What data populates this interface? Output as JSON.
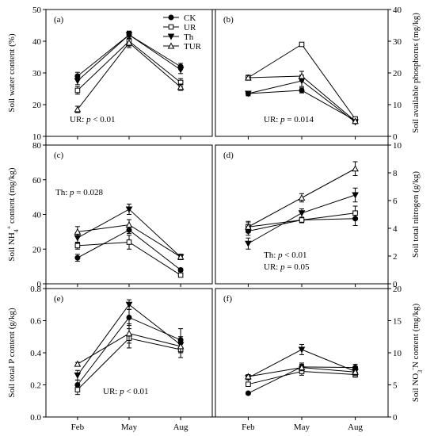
{
  "chart_data": [
    {
      "id": "a",
      "type": "line",
      "panel_label": "(a)",
      "ylabel": "Soil water content (%)",
      "y_side": "left",
      "ylim": [
        10,
        50
      ],
      "yticks": [
        "10",
        "20",
        "30",
        "40",
        "50"
      ],
      "categories": [
        "Feb",
        "May",
        "Aug"
      ],
      "series": [
        {
          "name": "CK",
          "values": [
            29.0,
            42.0,
            32.0
          ],
          "err": [
            1.2,
            1.0,
            1.0
          ]
        },
        {
          "name": "UR",
          "values": [
            24.5,
            40.0,
            27.0
          ],
          "err": [
            1.2,
            1.5,
            1.2
          ]
        },
        {
          "name": "Th",
          "values": [
            27.5,
            42.0,
            31.0
          ],
          "err": [
            1.2,
            1.2,
            1.2
          ]
        },
        {
          "name": "TUR",
          "values": [
            18.5,
            39.5,
            25.5
          ],
          "err": [
            1.0,
            1.5,
            1.0
          ]
        }
      ],
      "annotations": [
        {
          "text": "UR: p < 0.01"
        }
      ],
      "legend": {
        "position": "top-right",
        "entries": [
          "CK",
          "UR",
          "Th",
          "TUR"
        ]
      }
    },
    {
      "id": "b",
      "type": "line",
      "panel_label": "(b)",
      "ylabel": "Soil available phosphorus (mg/kg)",
      "y_side": "right",
      "ylim": [
        0,
        40
      ],
      "yticks": [
        "0",
        "10",
        "20",
        "30",
        "40"
      ],
      "categories": [
        "Feb",
        "May",
        "Aug"
      ],
      "series": [
        {
          "name": "CK",
          "values": [
            13.5,
            14.5,
            5.0
          ],
          "err": [
            0.7,
            0.8,
            0.5
          ]
        },
        {
          "name": "UR",
          "values": [
            18.5,
            29.0,
            5.5
          ],
          "err": [
            0.6,
            0.4,
            0.5
          ]
        },
        {
          "name": "Th",
          "values": [
            13.5,
            17.5,
            4.5
          ],
          "err": [
            0.7,
            1.8,
            0.5
          ]
        },
        {
          "name": "TUR",
          "values": [
            18.5,
            19.0,
            4.8
          ],
          "err": [
            0.8,
            1.5,
            0.5
          ]
        }
      ],
      "annotations": [
        {
          "text": "UR: p = 0.014"
        }
      ]
    },
    {
      "id": "c",
      "type": "line",
      "panel_label": "(c)",
      "ylabel": "Soil NH4+ content (mg/kg)",
      "y_side": "left",
      "ylim": [
        0,
        80
      ],
      "yticks": [
        "0",
        "20",
        "40",
        "60",
        "80"
      ],
      "categories": [
        "Feb",
        "May",
        "Aug"
      ],
      "series": [
        {
          "name": "CK",
          "values": [
            15.0,
            31.0,
            8.0
          ],
          "err": [
            2.0,
            2.0,
            1.0
          ]
        },
        {
          "name": "UR",
          "values": [
            22.0,
            24.0,
            5.0
          ],
          "err": [
            2.0,
            4.0,
            1.0
          ]
        },
        {
          "name": "Th",
          "values": [
            26.5,
            43.0,
            15.5
          ],
          "err": [
            3.0,
            3.0,
            1.5
          ]
        },
        {
          "name": "TUR",
          "values": [
            30.0,
            34.0,
            15.5
          ],
          "err": [
            3.0,
            3.0,
            1.5
          ]
        }
      ],
      "annotations": [
        {
          "text": "Th: p = 0.028"
        }
      ]
    },
    {
      "id": "d",
      "type": "line",
      "panel_label": "(d)",
      "ylabel": "Soil total nitrogen (g/kg)",
      "y_side": "right",
      "ylim": [
        0,
        10
      ],
      "yticks": [
        "0",
        "2",
        "4",
        "6",
        "8",
        "10"
      ],
      "categories": [
        "Feb",
        "May",
        "Aug"
      ],
      "series": [
        {
          "name": "CK",
          "values": [
            3.8,
            4.6,
            4.7
          ],
          "err": [
            0.3,
            0.2,
            0.5
          ]
        },
        {
          "name": "UR",
          "values": [
            4.1,
            4.6,
            5.1
          ],
          "err": [
            0.3,
            0.2,
            0.5
          ]
        },
        {
          "name": "Th",
          "values": [
            2.9,
            5.1,
            6.4
          ],
          "err": [
            0.4,
            0.3,
            0.5
          ]
        },
        {
          "name": "TUR",
          "values": [
            4.1,
            6.2,
            8.3
          ],
          "err": [
            0.4,
            0.3,
            0.5
          ]
        }
      ],
      "annotations": [
        {
          "text": "Th: p < 0.01"
        },
        {
          "text": "UR: p = 0.05"
        }
      ]
    },
    {
      "id": "e",
      "type": "line",
      "panel_label": "(e)",
      "ylabel": "Soil total P content (g/kg)",
      "y_side": "left",
      "ylim": [
        0.0,
        0.8
      ],
      "yticks": [
        "0.0",
        "0.2",
        "0.4",
        "0.6",
        "0.8"
      ],
      "xticklabels_shown": true,
      "categories": [
        "Feb",
        "May",
        "Aug"
      ],
      "series": [
        {
          "name": "CK",
          "values": [
            0.2,
            0.62,
            0.48
          ],
          "err": [
            0.03,
            0.05,
            0.07
          ]
        },
        {
          "name": "UR",
          "values": [
            0.17,
            0.49,
            0.42
          ],
          "err": [
            0.03,
            0.06,
            0.05
          ]
        },
        {
          "name": "Th",
          "values": [
            0.26,
            0.7,
            0.45
          ],
          "err": [
            0.03,
            0.03,
            0.05
          ]
        },
        {
          "name": "TUR",
          "values": [
            0.33,
            0.52,
            0.44
          ],
          "err": [
            0.01,
            0.06,
            0.04
          ]
        }
      ],
      "annotations": [
        {
          "text": "UR: p < 0.01"
        }
      ]
    },
    {
      "id": "f",
      "type": "line",
      "panel_label": "(f)",
      "ylabel": "Soil NO3-N content (mg/kg)",
      "y_side": "right",
      "ylim": [
        0,
        20
      ],
      "yticks": [
        "0",
        "5",
        "10",
        "15",
        "20"
      ],
      "xticklabels_shown": true,
      "categories": [
        "Feb",
        "May",
        "Aug"
      ],
      "series": [
        {
          "name": "CK",
          "values": [
            3.7,
            7.8,
            7.7
          ],
          "err": [
            0.2,
            0.6,
            0.5
          ]
        },
        {
          "name": "UR",
          "values": [
            5.1,
            7.1,
            6.6
          ],
          "err": [
            0.2,
            0.6,
            0.4
          ]
        },
        {
          "name": "Th",
          "values": [
            6.1,
            10.5,
            7.1
          ],
          "err": [
            0.3,
            0.8,
            0.6
          ]
        },
        {
          "name": "TUR",
          "values": [
            6.3,
            7.7,
            7.0
          ],
          "err": [
            0.3,
            0.5,
            0.4
          ]
        }
      ]
    }
  ],
  "legend": {
    "position": "top-right",
    "entries": [
      "CK",
      "UR",
      "Th",
      "TUR"
    ]
  }
}
